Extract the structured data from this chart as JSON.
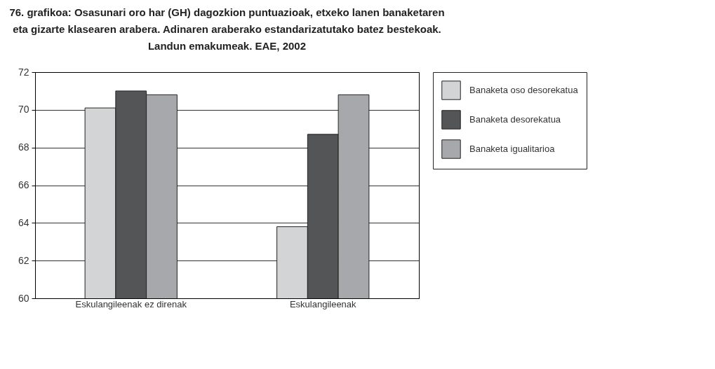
{
  "chart_data": {
    "type": "bar",
    "title": "76. grafikoa: Osasunari oro har (GH) dagozkion puntuazioak, etxeko lanen banaketaren eta gizarte klasearen arabera. Adinaren araberako estandarizatutako batez bestekoak. Landun emakumeak. EAE, 2002",
    "categories": [
      "Eskulangileenak ez direnak",
      "Eskulangileenak"
    ],
    "series": [
      {
        "name": "Banaketa oso desorekatua",
        "color": "#d3d4d6",
        "values": [
          70.1,
          63.8
        ]
      },
      {
        "name": "Banaketa desorekatua",
        "color": "#545557",
        "values": [
          71.0,
          68.7
        ]
      },
      {
        "name": "Banaketa igualitarioa",
        "color": "#a7a8ab",
        "values": [
          70.8,
          70.8
        ]
      }
    ],
    "ylim": [
      60,
      72
    ],
    "yticks": [
      60,
      62,
      64,
      66,
      68,
      70,
      72
    ],
    "grid": "y",
    "legend": "top right"
  }
}
